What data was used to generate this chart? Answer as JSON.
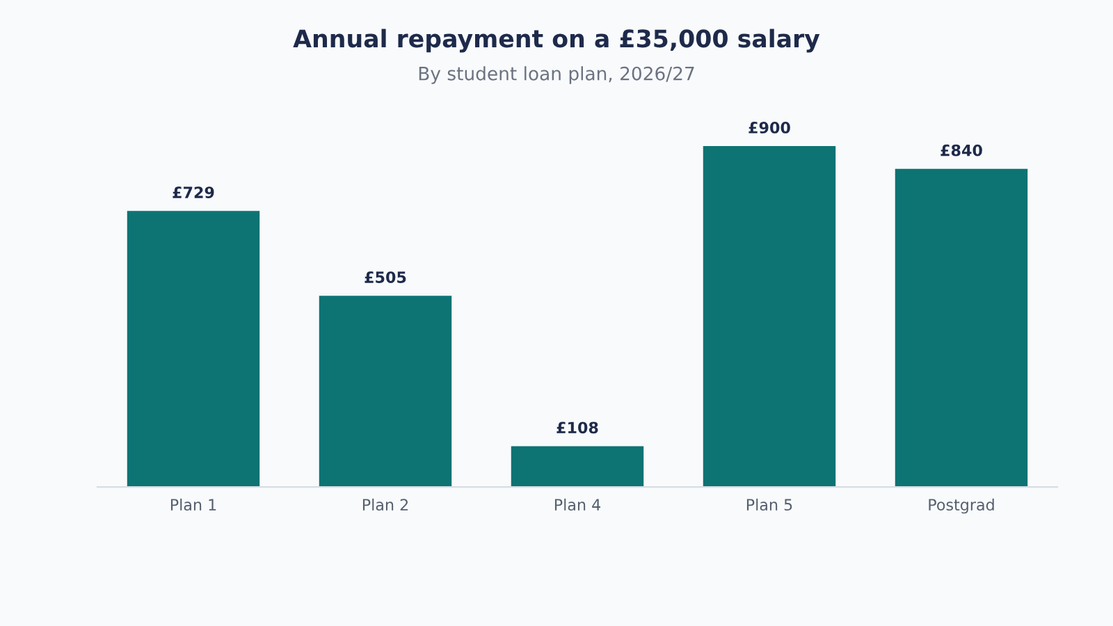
{
  "chart_data": {
    "type": "bar",
    "title": "Annual repayment on a £35,000 salary",
    "subtitle": "By student loan plan, 2026/27",
    "categories": [
      "Plan 1",
      "Plan 2",
      "Plan 4",
      "Plan 5",
      "Postgrad"
    ],
    "values": [
      729,
      505,
      108,
      900,
      840
    ],
    "value_labels": [
      "£729",
      "£505",
      "£108",
      "£900",
      "£840"
    ],
    "color": "#0e7373",
    "grid": false,
    "legend": false
  }
}
